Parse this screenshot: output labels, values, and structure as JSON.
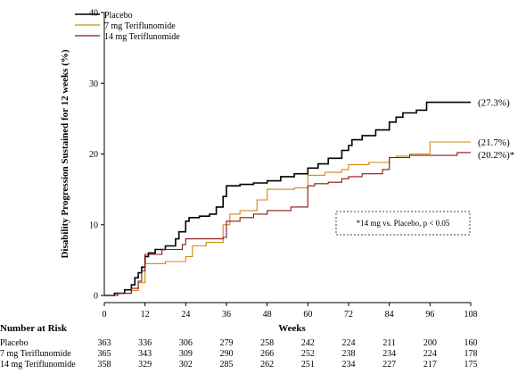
{
  "chart_data": {
    "type": "line",
    "ylabel": "Disability Progression Sustained for 12 weeks (%)",
    "xlabel": "Weeks",
    "xlim": [
      0,
      108
    ],
    "ylim": [
      0,
      40
    ],
    "x_ticks": [
      0,
      12,
      24,
      36,
      48,
      60,
      72,
      84,
      96,
      108
    ],
    "y_ticks": [
      0,
      10,
      20,
      30,
      40
    ],
    "grid": false,
    "legend_position": "top-left",
    "series": [
      {
        "name": "Placebo",
        "color": "#000000",
        "end_label": "(27.3%)",
        "steps": [
          [
            0,
            0
          ],
          [
            3,
            0.3
          ],
          [
            6,
            0.8
          ],
          [
            8,
            1.5
          ],
          [
            9,
            2.5
          ],
          [
            10,
            3.2
          ],
          [
            11,
            4
          ],
          [
            12,
            5.5
          ],
          [
            13,
            6
          ],
          [
            15,
            6.5
          ],
          [
            18,
            7
          ],
          [
            21,
            8
          ],
          [
            22,
            9
          ],
          [
            24,
            10.5
          ],
          [
            25,
            11
          ],
          [
            28,
            11.2
          ],
          [
            31,
            11.5
          ],
          [
            33,
            12.5
          ],
          [
            35,
            14
          ],
          [
            36,
            15.5
          ],
          [
            40,
            15.7
          ],
          [
            44,
            15.9
          ],
          [
            48,
            16.2
          ],
          [
            52,
            16.8
          ],
          [
            56,
            17.2
          ],
          [
            60,
            18
          ],
          [
            63,
            18.6
          ],
          [
            66,
            19.4
          ],
          [
            70,
            20.5
          ],
          [
            72,
            21.2
          ],
          [
            73,
            22
          ],
          [
            76,
            22.6
          ],
          [
            80,
            23.4
          ],
          [
            84,
            24.5
          ],
          [
            86,
            25.2
          ],
          [
            88,
            25.8
          ],
          [
            92,
            26.2
          ],
          [
            95,
            27.3
          ],
          [
            108,
            27.3
          ]
        ]
      },
      {
        "name": "7 mg Teriflunomide",
        "color": "#d4860f",
        "end_label": "(21.7%)",
        "steps": [
          [
            0,
            0
          ],
          [
            4,
            0.3
          ],
          [
            8,
            0.7
          ],
          [
            10,
            1.8
          ],
          [
            12,
            4.5
          ],
          [
            18,
            4.8
          ],
          [
            24,
            5.5
          ],
          [
            26,
            7
          ],
          [
            30,
            7.5
          ],
          [
            35,
            10
          ],
          [
            37,
            11.5
          ],
          [
            40,
            12
          ],
          [
            45,
            13.5
          ],
          [
            48,
            15
          ],
          [
            56,
            15.2
          ],
          [
            60,
            17
          ],
          [
            65,
            17.4
          ],
          [
            70,
            17.8
          ],
          [
            72,
            18.5
          ],
          [
            78,
            18.8
          ],
          [
            84,
            19.5
          ],
          [
            86,
            19.7
          ],
          [
            90,
            20
          ],
          [
            96,
            21.7
          ],
          [
            108,
            21.7
          ]
        ]
      },
      {
        "name": "14 mg Teriflunomide",
        "color": "#8b1414",
        "end_label": "(20.2%)*",
        "steps": [
          [
            0,
            0
          ],
          [
            4,
            0.3
          ],
          [
            8,
            1
          ],
          [
            10,
            2
          ],
          [
            11,
            3.5
          ],
          [
            12,
            5.8
          ],
          [
            17,
            6.5
          ],
          [
            23,
            7.2
          ],
          [
            24,
            8
          ],
          [
            35,
            8.2
          ],
          [
            36,
            10.5
          ],
          [
            40,
            11
          ],
          [
            44,
            11.5
          ],
          [
            48,
            12
          ],
          [
            55,
            12.5
          ],
          [
            60,
            15.5
          ],
          [
            62,
            15.8
          ],
          [
            66,
            16
          ],
          [
            70,
            16.5
          ],
          [
            72,
            16.8
          ],
          [
            76,
            17.2
          ],
          [
            82,
            17.8
          ],
          [
            84,
            19.5
          ],
          [
            90,
            19.8
          ],
          [
            104,
            20.2
          ],
          [
            108,
            20.2
          ]
        ]
      }
    ],
    "annotation": "*14 mg vs. Placebo, p < 0.05",
    "risk_table": {
      "title": "Number at Risk",
      "rows": [
        {
          "label": "Placebo",
          "values": [
            363,
            336,
            306,
            279,
            258,
            242,
            224,
            211,
            200,
            160
          ]
        },
        {
          "label": "7 mg Teriflunomide",
          "values": [
            365,
            343,
            309,
            290,
            266,
            252,
            238,
            234,
            224,
            178
          ]
        },
        {
          "label": "14 mg Teriflunomide",
          "values": [
            358,
            329,
            302,
            285,
            262,
            251,
            234,
            227,
            217,
            175
          ]
        }
      ]
    }
  }
}
